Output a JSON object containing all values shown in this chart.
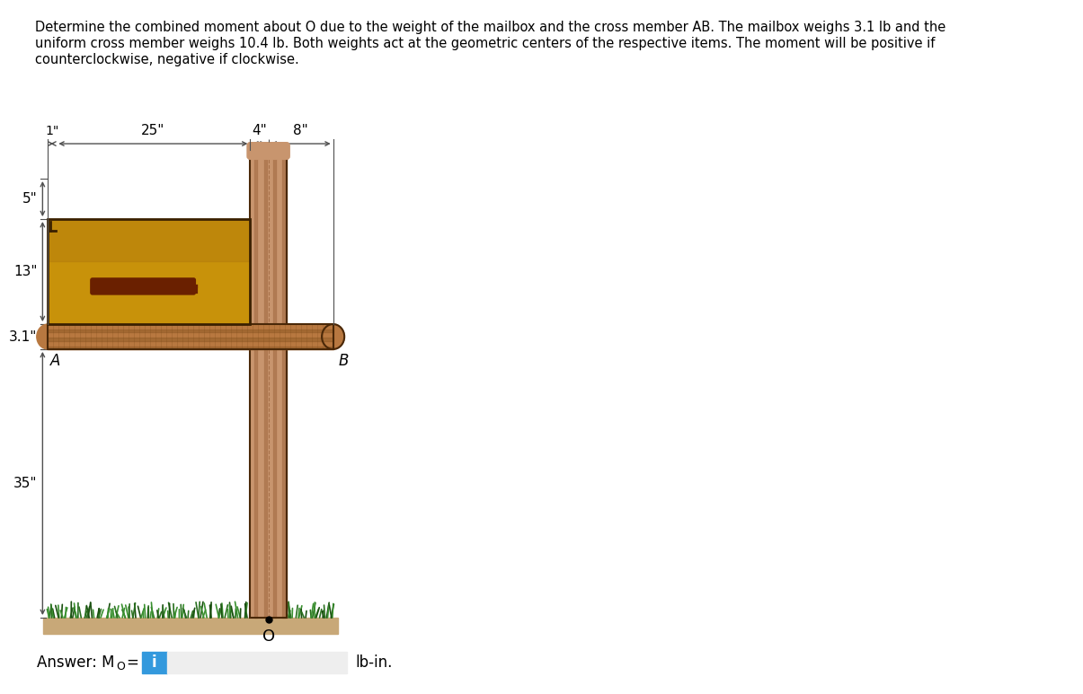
{
  "title_line1": "Determine the combined moment about O due to the weight of the mailbox and the cross member AB. The mailbox weighs 3.1 lb and the",
  "title_line2": "uniform cross member weighs 10.4 lb. Both weights act at the geometric centers of the respective items. The moment will be positive if",
  "title_line3": "counterclockwise, negative if clockwise.",
  "dim_1": "1\"",
  "dim_25": "25\"",
  "dim_4": "4\"",
  "dim_8": "8\"",
  "dim_5": "5\"",
  "dim_13": "13\"",
  "dim_31": "3.1\"",
  "dim_35": "35\"",
  "label_A": "A",
  "label_B": "B",
  "label_O": "O",
  "unit_text": "lb-in.",
  "post_color": "#c8956e",
  "post_stripe_color": "#a06840",
  "mailbox_gold": "#c8920a",
  "mailbox_dark_gold": "#a87010",
  "mailbox_shadow": "#7a5000",
  "crossmember_color": "#b87840",
  "crossmember_dark": "#7a4a18",
  "ground_color": "#c8a878",
  "grass_dark": "#1a5010",
  "grass_mid": "#2a7020",
  "grass_light": "#3a9030",
  "dim_line_color": "#505050",
  "answer_blue": "#3399dd",
  "input_bg": "#eeeeee",
  "input_border": "#bbbbbb"
}
